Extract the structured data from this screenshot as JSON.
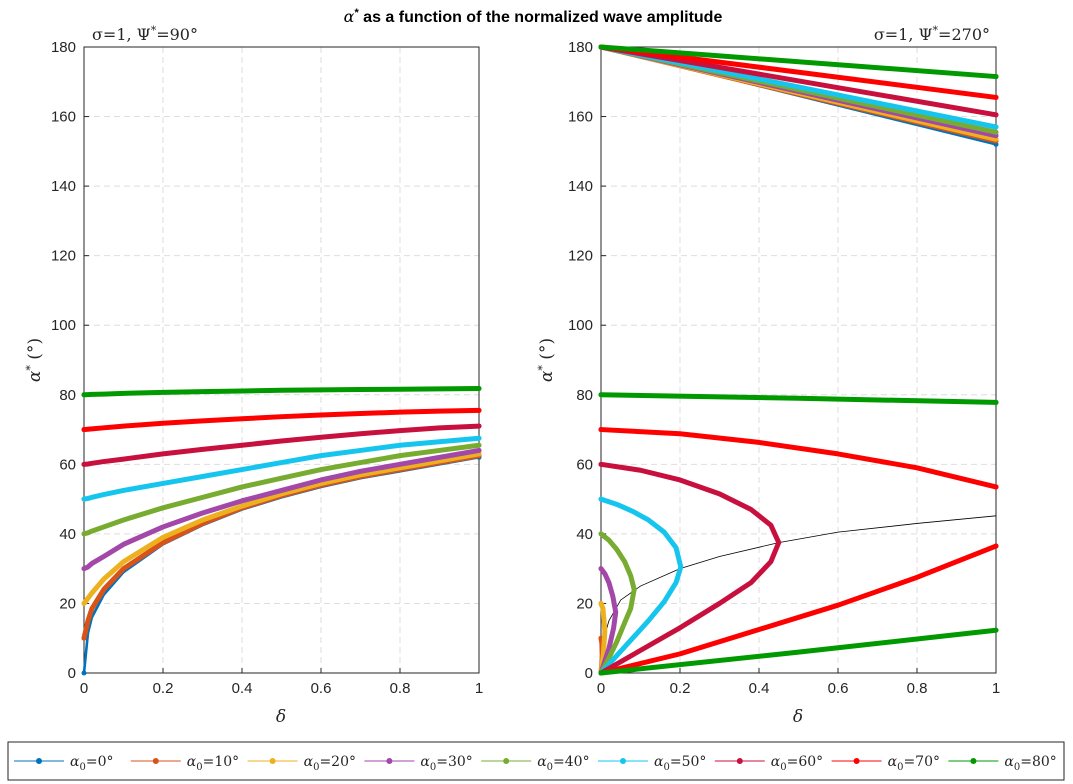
{
  "figure": {
    "title_prefix": "α",
    "title_sup": "*",
    "title_suffix": " as a function of the normalized wave amplitude"
  },
  "panels": [
    {
      "subtitle_prefix": "σ=1, Ψ",
      "subtitle_sup": "*",
      "subtitle_suffix": "=90°",
      "xlabel": "δ",
      "ylabel_main": "α",
      "ylabel_sup": "*",
      "ylabel_unit": " (°)"
    },
    {
      "subtitle_prefix": "σ=1, Ψ",
      "subtitle_sup": "*",
      "subtitle_suffix": "=270°",
      "xlabel": "δ",
      "ylabel_main": "α",
      "ylabel_sup": "*",
      "ylabel_unit": " (°)"
    }
  ],
  "legend": {
    "placement": "bottom",
    "entries": [
      {
        "sub": "0",
        "value": "=0°",
        "color": "#0072bd"
      },
      {
        "sub": "0",
        "value": "=10°",
        "color": "#d95319"
      },
      {
        "sub": "0",
        "value": "=20°",
        "color": "#edb120"
      },
      {
        "sub": "0",
        "value": "=30°",
        "color": "#a347a9"
      },
      {
        "sub": "0",
        "value": "=40°",
        "color": "#77ac30"
      },
      {
        "sub": "0",
        "value": "=50°",
        "color": "#16c5ee"
      },
      {
        "sub": "0",
        "value": "=60°",
        "color": "#c8103e"
      },
      {
        "sub": "0",
        "value": "=70°",
        "color": "#ff0000"
      },
      {
        "sub": "0",
        "value": "=80°",
        "color": "#009900"
      }
    ]
  },
  "chart_data": [
    {
      "type": "line",
      "xlim": [
        0,
        1
      ],
      "ylim": [
        0,
        180
      ],
      "xticks": [
        "0",
        "0.2",
        "0.4",
        "0.6",
        "0.8",
        "1"
      ],
      "yticks": [
        "0",
        "20",
        "40",
        "60",
        "80",
        "100",
        "120",
        "140",
        "160",
        "180"
      ],
      "grid": true,
      "x": [
        0,
        0.01,
        0.02,
        0.05,
        0.1,
        0.2,
        0.3,
        0.4,
        0.5,
        0.6,
        0.7,
        0.8,
        0.9,
        1.0
      ],
      "series": [
        {
          "alpha0": 0,
          "y": [
            0,
            11.5,
            16,
            22.5,
            29,
            37,
            42.5,
            47,
            50.5,
            53.5,
            56,
            58,
            60,
            62
          ]
        },
        {
          "alpha0": 10,
          "y": [
            10,
            15,
            18.5,
            24,
            30,
            37.5,
            43,
            47.5,
            51,
            54,
            56.5,
            58.5,
            60.5,
            62.5
          ]
        },
        {
          "alpha0": 20,
          "y": [
            20,
            21.5,
            23,
            27,
            32,
            39,
            44,
            48,
            51.5,
            54.5,
            57,
            59,
            61,
            63
          ]
        },
        {
          "alpha0": 30,
          "y": [
            30,
            30.5,
            31.5,
            33.5,
            37,
            42,
            46,
            49.5,
            52.5,
            55.5,
            58,
            60,
            62,
            64
          ]
        },
        {
          "alpha0": 40,
          "y": [
            40,
            40.3,
            40.8,
            42,
            44,
            47.5,
            50.5,
            53.5,
            56,
            58.5,
            60.5,
            62.5,
            64,
            65.5
          ]
        },
        {
          "alpha0": 50,
          "y": [
            50,
            50.2,
            50.5,
            51.3,
            52.5,
            54.5,
            56.5,
            58.5,
            60.5,
            62.5,
            64,
            65.5,
            66.5,
            67.5
          ]
        },
        {
          "alpha0": 60,
          "y": [
            60,
            60.1,
            60.3,
            60.8,
            61.5,
            63,
            64.3,
            65.5,
            66.7,
            67.8,
            68.8,
            69.7,
            70.5,
            71
          ]
        },
        {
          "alpha0": 70,
          "y": [
            70,
            70.1,
            70.2,
            70.5,
            71,
            71.8,
            72.5,
            73.1,
            73.7,
            74.2,
            74.6,
            75,
            75.3,
            75.5
          ]
        },
        {
          "alpha0": 80,
          "y": [
            80,
            80.05,
            80.1,
            80.2,
            80.4,
            80.7,
            80.9,
            81.1,
            81.3,
            81.4,
            81.5,
            81.6,
            81.7,
            81.8
          ]
        }
      ]
    },
    {
      "type": "line",
      "xlim": [
        0,
        1
      ],
      "ylim": [
        0,
        180
      ],
      "xticks": [
        "0",
        "0.2",
        "0.4",
        "0.6",
        "0.8",
        "1"
      ],
      "yticks": [
        "0",
        "20",
        "40",
        "60",
        "80",
        "100",
        "120",
        "140",
        "160",
        "180"
      ],
      "grid": true,
      "series": [
        {
          "alpha0": 0,
          "branches": [
            {
              "x": [
                0,
                1
              ],
              "y": [
                180,
                152
              ]
            }
          ]
        },
        {
          "alpha0": 10,
          "branches": [
            {
              "x": [
                0,
                1
              ],
              "y": [
                180,
                153
              ]
            },
            {
              "x": [
                0,
                0.0022,
                0.003,
                0.0022,
                0
              ],
              "y": [
                10,
                8.5,
                5,
                3,
                0
              ]
            }
          ]
        },
        {
          "alpha0": 20,
          "branches": [
            {
              "x": [
                0,
                1
              ],
              "y": [
                180,
                153.5
              ]
            },
            {
              "x": [
                0,
                0.005,
                0.0098,
                0.006,
                0.003,
                0
              ],
              "y": [
                20,
                18.5,
                12,
                5.5,
                2.5,
                0
              ]
            }
          ]
        },
        {
          "alpha0": 30,
          "branches": [
            {
              "x": [
                0,
                1
              ],
              "y": [
                180,
                154.5
              ]
            },
            {
              "x": [
                0,
                0.01,
                0.02,
                0.03,
                0.0373,
                0.032,
                0.02,
                0.01,
                0
              ],
              "y": [
                30,
                28.5,
                26,
                22,
                17.5,
                13,
                7,
                3.5,
                0
              ]
            }
          ]
        },
        {
          "alpha0": 40,
          "branches": [
            {
              "x": [
                0,
                1
              ],
              "y": [
                180,
                155.5
              ]
            },
            {
              "x": [
                0,
                0.02,
                0.04,
                0.06,
                0.075,
                0.084,
                0.075,
                0.06,
                0.04,
                0.02,
                0
              ],
              "y": [
                40,
                38.2,
                35.5,
                32,
                28,
                24,
                18.5,
                14.5,
                9,
                4.3,
                0
              ]
            }
          ]
        },
        {
          "alpha0": 50,
          "branches": [
            {
              "x": [
                0,
                1
              ],
              "y": [
                180,
                157
              ]
            },
            {
              "x": [
                0,
                0.04,
                0.08,
                0.12,
                0.16,
                0.19,
                0.202,
                0.19,
                0.16,
                0.12,
                0.08,
                0.04,
                0
              ],
              "y": [
                50,
                48.5,
                46.5,
                44,
                40.5,
                36,
                30.5,
                26,
                20.5,
                15,
                10,
                5,
                0
              ]
            }
          ]
        },
        {
          "alpha0": 60,
          "branches": [
            {
              "x": [
                0,
                1
              ],
              "y": [
                180,
                160.5
              ]
            },
            {
              "x": [
                0,
                0.1,
                0.2,
                0.3,
                0.38,
                0.43,
                0.45,
                0.43,
                0.38,
                0.3,
                0.2,
                0.1,
                0
              ],
              "y": [
                60,
                58.3,
                55.5,
                51.5,
                47,
                42.5,
                37.5,
                32,
                26,
                20,
                13,
                6.5,
                0
              ]
            }
          ]
        },
        {
          "alpha0": 70,
          "branches": [
            {
              "x": [
                0,
                1
              ],
              "y": [
                180,
                165.5
              ]
            },
            {
              "x": [
                0,
                0.2,
                0.4,
                0.6,
                0.8,
                1.0
              ],
              "y": [
                70,
                68.8,
                66.3,
                63,
                59,
                53.5
              ]
            },
            {
              "x": [
                0,
                0.2,
                0.4,
                0.6,
                0.8,
                1.0
              ],
              "y": [
                0,
                5.5,
                12.5,
                19.5,
                27.5,
                36.5
              ]
            }
          ]
        },
        {
          "alpha0": 80,
          "branches": [
            {
              "x": [
                0,
                1
              ],
              "y": [
                180,
                171.5
              ]
            },
            {
              "x": [
                0,
                0.5,
                1.0
              ],
              "y": [
                80,
                79,
                77.8
              ]
            },
            {
              "x": [
                0,
                0.5,
                1.0
              ],
              "y": [
                0,
                6,
                12.3
              ]
            }
          ]
        }
      ],
      "boundary_curve": {
        "x": [
          0,
          0.01,
          0.02,
          0.05,
          0.1,
          0.2,
          0.3,
          0.45,
          0.6,
          0.8,
          1.0
        ],
        "y": [
          0,
          11,
          15,
          21,
          25,
          30,
          33.5,
          37.5,
          40.5,
          43,
          45.2
        ]
      }
    }
  ]
}
